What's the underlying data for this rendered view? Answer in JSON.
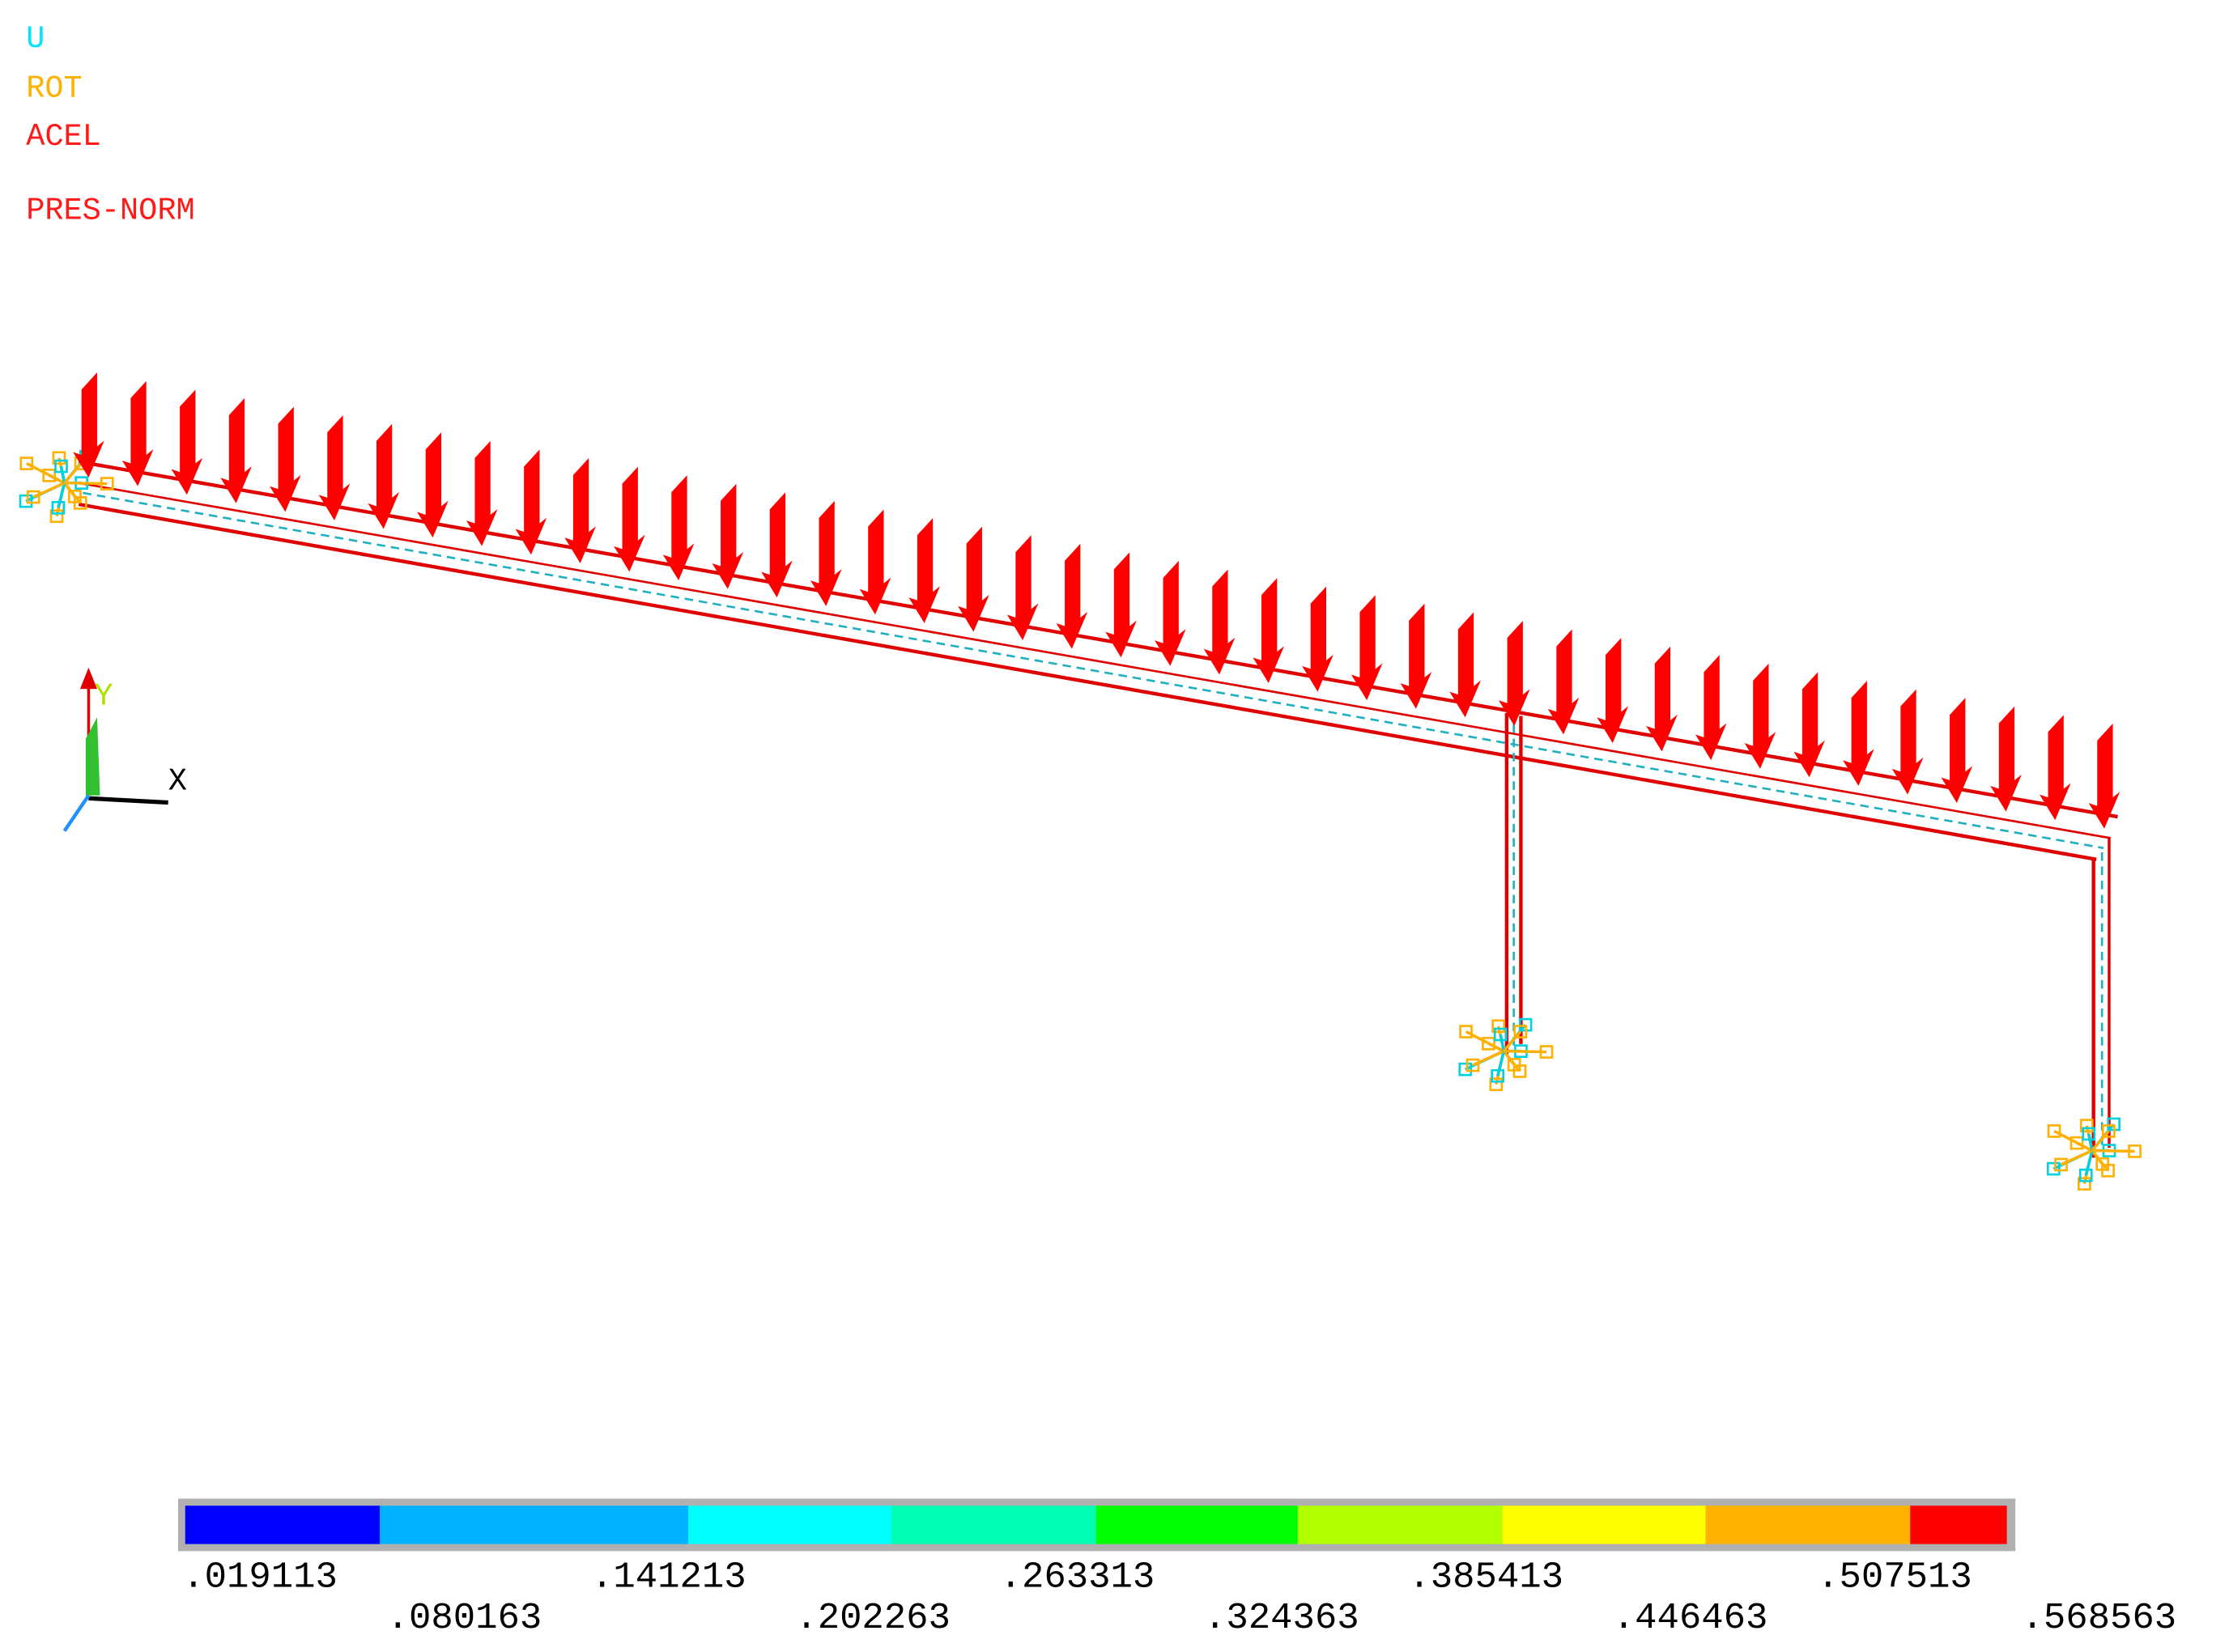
{
  "legend": [
    {
      "text": "U",
      "color": "#00e5ff"
    },
    {
      "text": "ROT",
      "color": "#ffb000"
    },
    {
      "text": "ACEL",
      "color": "#ff1a1a"
    },
    {
      "text": "PRES-NORM",
      "color": "#ff1a1a"
    }
  ],
  "triad": {
    "x": "X",
    "y": "Y"
  },
  "contour_bar": {
    "colors": [
      "#0000ff",
      "#00b2ff",
      "#00ffff",
      "#00ffb2",
      "#00ff00",
      "#b2ff00",
      "#ffff00",
      "#ffb200",
      "#ff0000"
    ],
    "labels": [
      ".019113",
      ".080163",
      ".141213",
      ".202263",
      ".263313",
      ".324363",
      ".385413",
      ".446463",
      ".507513",
      ".568563"
    ]
  }
}
